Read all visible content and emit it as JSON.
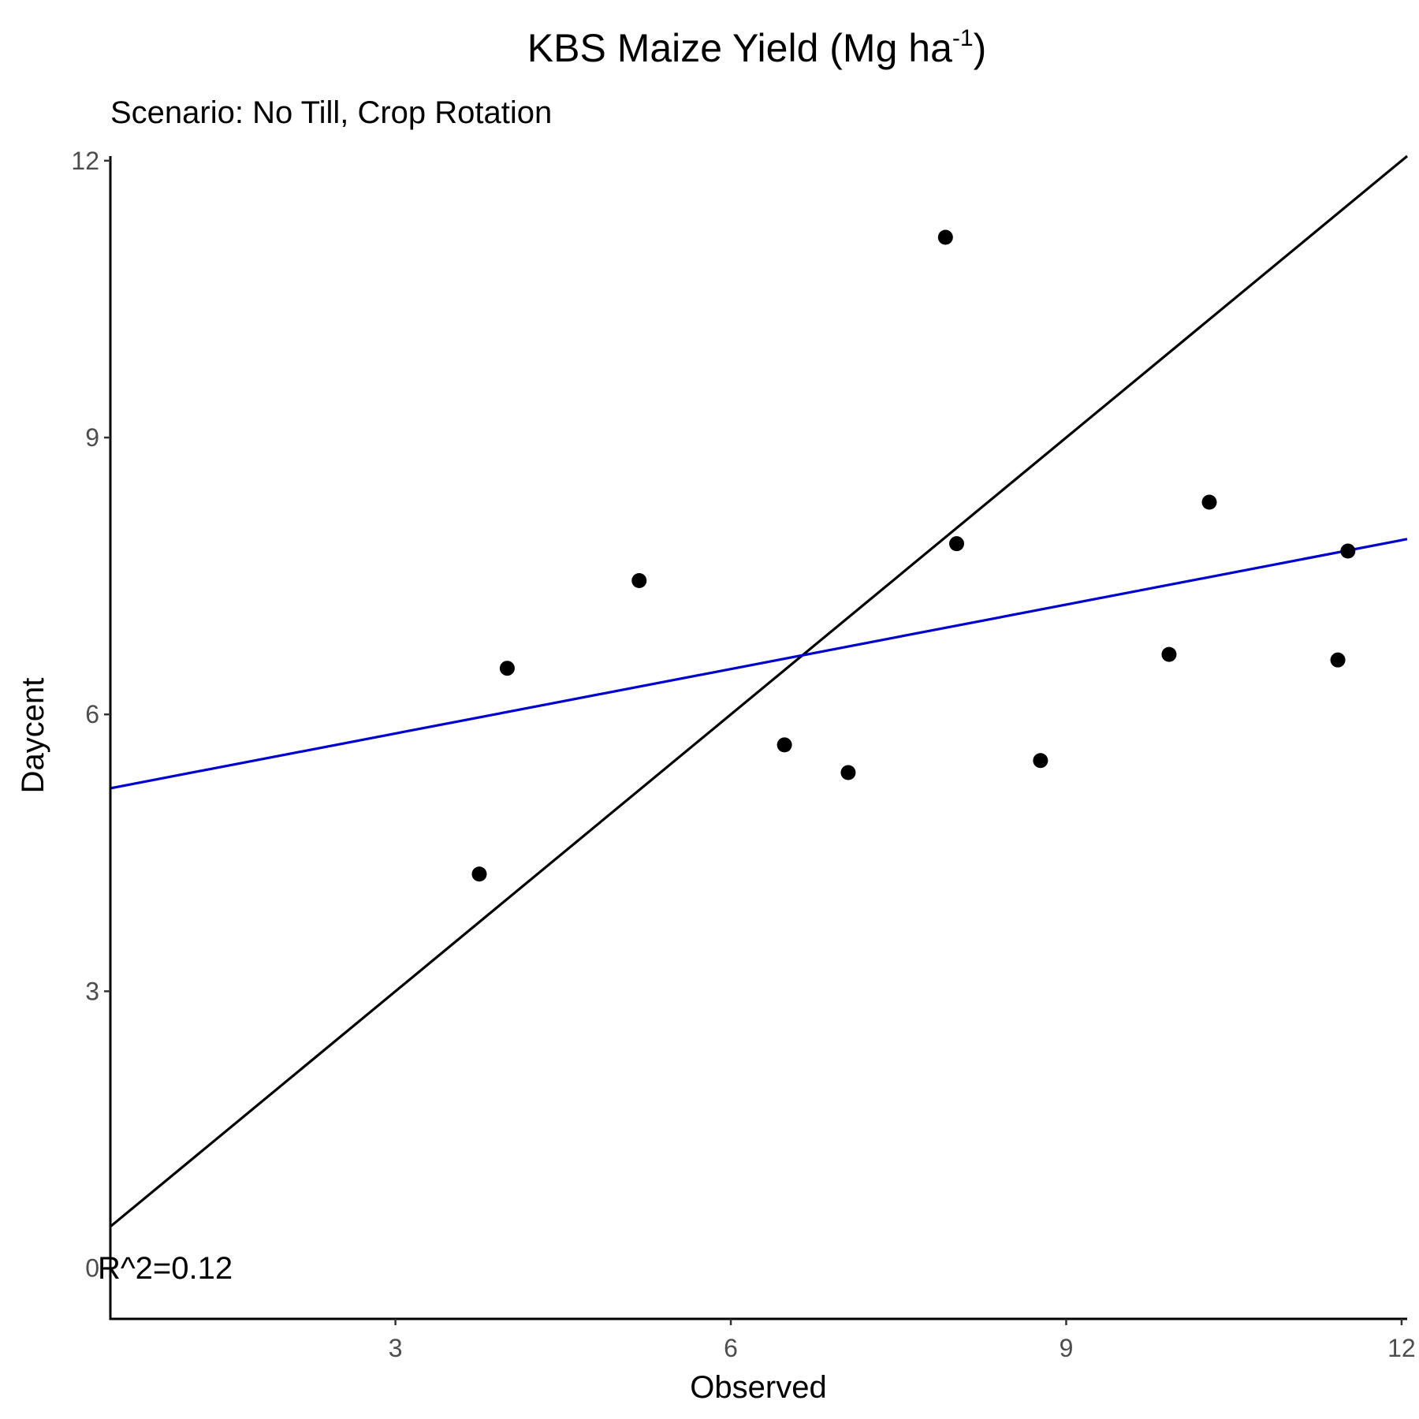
{
  "chart_data": {
    "type": "scatter",
    "title": "KBS Maize Yield (Mg ha",
    "title_superscript": "-1",
    "title_suffix": ")",
    "subtitle": "Scenario: No Till, Crop Rotation",
    "xlabel": "Observed",
    "ylabel": "Daycent",
    "xlim": [
      0.45,
      12.05
    ],
    "ylim": [
      -0.55,
      12.05
    ],
    "xticks": [
      3,
      6,
      9,
      12
    ],
    "yticks": [
      0,
      3,
      6,
      9,
      12
    ],
    "grid": false,
    "points": {
      "color": "#000000",
      "x": [
        3.75,
        4.0,
        5.18,
        6.48,
        7.05,
        7.92,
        8.02,
        8.77,
        9.92,
        10.28,
        11.43,
        11.52
      ],
      "y": [
        4.27,
        6.5,
        7.45,
        5.67,
        5.37,
        11.17,
        7.85,
        5.5,
        6.65,
        8.3,
        6.59,
        7.77
      ]
    },
    "lines": [
      {
        "name": "1:1 line",
        "color": "#000000",
        "x": [
          0.45,
          12.05
        ],
        "y": [
          0.45,
          12.05
        ]
      },
      {
        "name": "regression",
        "color": "#0000cc",
        "x": [
          0.45,
          12.05
        ],
        "y": [
          5.2,
          7.9
        ]
      }
    ],
    "annotation": "R^2=0.12"
  }
}
